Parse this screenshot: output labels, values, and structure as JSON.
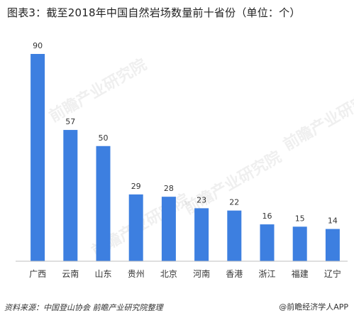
{
  "title": "图表3：截至2018年中国自然岩场数量前十省份（单位：个）",
  "source": "资料来源：中国登山协会  前瞻产业研究院整理",
  "brand": "@前瞻经济学人APP",
  "watermark": "前瞻产业研究院",
  "colors": {
    "bar": "#3d7fe0",
    "axis": "#bfbfbf",
    "text": "#333333"
  },
  "chart_data": {
    "type": "bar",
    "categories": [
      "广西",
      "云南",
      "山东",
      "贵州",
      "北京",
      "河南",
      "香港",
      "浙江",
      "福建",
      "辽宁"
    ],
    "values": [
      90,
      57,
      50,
      29,
      28,
      23,
      22,
      16,
      15,
      14
    ],
    "ylim": [
      0,
      90
    ],
    "grid": false,
    "data_labels": true
  }
}
